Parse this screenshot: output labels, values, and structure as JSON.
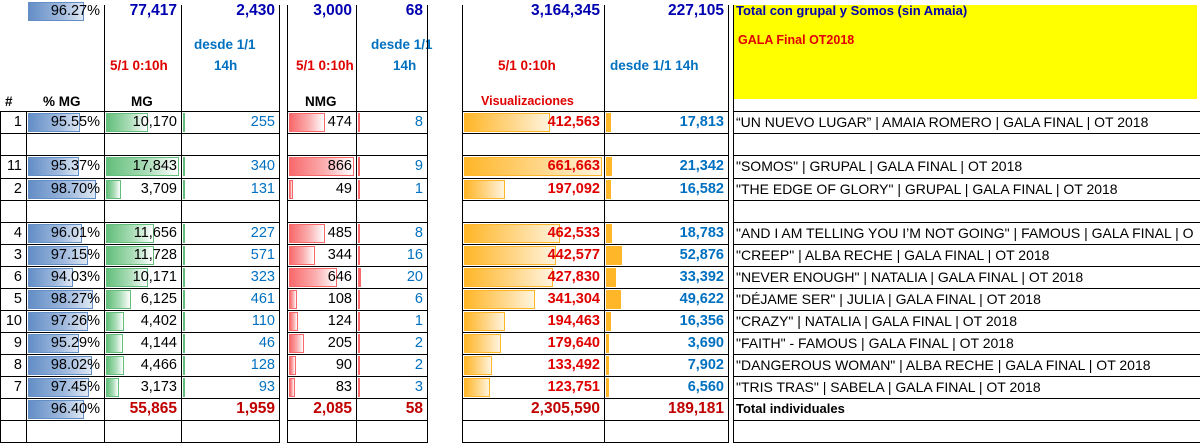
{
  "header": {
    "title": "GALA Final OT2018",
    "h_mg_snap": "5/1 0:10h",
    "h_mg_since": "desde 1/1",
    "h_mg_since2": "14h",
    "h_nmg_snap": "5/1 0:10h",
    "h_nmg_since": "desde 1/1",
    "h_nmg_since2": "14h",
    "h_vis_snap": "5/1 0:10h",
    "h_vis_since": "desde 1/1 14h",
    "col_num": "#",
    "col_pct": "% MG",
    "col_mg": "MG",
    "col_nmg": "NMG",
    "col_vis": "Visualizaciones"
  },
  "rows": [
    {
      "num": "1",
      "pct": "95.55%",
      "pct_v": 95.55,
      "mg": "10,170",
      "mg_v": 10170,
      "mgs": "255",
      "mgs_v": 255,
      "nmg": "474",
      "nmg_v": 474,
      "nmgs": "8",
      "nmgs_v": 8,
      "vis": "412,563",
      "vis_v": 412563,
      "viss": "17,813",
      "viss_v": 17813,
      "title": "“UN NUEVO LUGAR” | AMAIA ROMERO | GALA FINAL | OT 2018"
    },
    {
      "num": "11",
      "pct": "95.37%",
      "pct_v": 95.37,
      "mg": "17,843",
      "mg_v": 17843,
      "mgs": "340",
      "mgs_v": 340,
      "nmg": "866",
      "nmg_v": 866,
      "nmgs": "9",
      "nmgs_v": 9,
      "vis": "661,663",
      "vis_v": 661663,
      "viss": "21,342",
      "viss_v": 21342,
      "title": "\"SOMOS\" | GRUPAL | GALA FINAL | OT 2018"
    },
    {
      "num": "2",
      "pct": "98.70%",
      "pct_v": 98.7,
      "mg": "3,709",
      "mg_v": 3709,
      "mgs": "131",
      "mgs_v": 131,
      "nmg": "49",
      "nmg_v": 49,
      "nmgs": "1",
      "nmgs_v": 1,
      "vis": "197,092",
      "vis_v": 197092,
      "viss": "16,582",
      "viss_v": 16582,
      "title": "\"THE EDGE OF GLORY\" | GRUPAL | GALA FINAL | OT 2018"
    },
    {
      "num": "4",
      "pct": "96.01%",
      "pct_v": 96.01,
      "mg": "11,656",
      "mg_v": 11656,
      "mgs": "227",
      "mgs_v": 227,
      "nmg": "485",
      "nmg_v": 485,
      "nmgs": "8",
      "nmgs_v": 8,
      "vis": "462,533",
      "vis_v": 462533,
      "viss": "18,783",
      "viss_v": 18783,
      "title": "\"AND I AM TELLING YOU I’M NOT GOING\" | FAMOUS | GALA FINAL | O"
    },
    {
      "num": "3",
      "pct": "97.15%",
      "pct_v": 97.15,
      "mg": "11,728",
      "mg_v": 11728,
      "mgs": "571",
      "mgs_v": 571,
      "nmg": "344",
      "nmg_v": 344,
      "nmgs": "16",
      "nmgs_v": 16,
      "vis": "442,577",
      "vis_v": 442577,
      "viss": "52,876",
      "viss_v": 52876,
      "title": "\"CREEP\" | ALBA RECHE | GALA FINAL | OT 2018"
    },
    {
      "num": "6",
      "pct": "94.03%",
      "pct_v": 94.03,
      "mg": "10,171",
      "mg_v": 10171,
      "mgs": "323",
      "mgs_v": 323,
      "nmg": "646",
      "nmg_v": 646,
      "nmgs": "20",
      "nmgs_v": 20,
      "vis": "427,830",
      "vis_v": 427830,
      "viss": "33,392",
      "viss_v": 33392,
      "title": "\"NEVER ENOUGH\" | NATALIA | GALA FINAL | OT 2018"
    },
    {
      "num": "5",
      "pct": "98.27%",
      "pct_v": 98.27,
      "mg": "6,125",
      "mg_v": 6125,
      "mgs": "461",
      "mgs_v": 461,
      "nmg": "108",
      "nmg_v": 108,
      "nmgs": "6",
      "nmgs_v": 6,
      "vis": "341,304",
      "vis_v": 341304,
      "viss": "49,622",
      "viss_v": 49622,
      "title": "\"DÉJAME SER\" | JULIA | GALA FINAL | OT 2018"
    },
    {
      "num": "10",
      "pct": "97.26%",
      "pct_v": 97.26,
      "mg": "4,402",
      "mg_v": 4402,
      "mgs": "110",
      "mgs_v": 110,
      "nmg": "124",
      "nmg_v": 124,
      "nmgs": "1",
      "nmgs_v": 1,
      "vis": "194,463",
      "vis_v": 194463,
      "viss": "16,356",
      "viss_v": 16356,
      "title": "\"CRAZY\" | NATALIA | GALA FINAL | OT 2018"
    },
    {
      "num": "9",
      "pct": "95.29%",
      "pct_v": 95.29,
      "mg": "4,144",
      "mg_v": 4144,
      "mgs": "46",
      "mgs_v": 46,
      "nmg": "205",
      "nmg_v": 205,
      "nmgs": "2",
      "nmgs_v": 2,
      "vis": "179,640",
      "vis_v": 179640,
      "viss": "3,690",
      "viss_v": 3690,
      "title": "\"FAITH\" - FAMOUS | GALA FINAL | OT 2018"
    },
    {
      "num": "8",
      "pct": "98.02%",
      "pct_v": 98.02,
      "mg": "4,466",
      "mg_v": 4466,
      "mgs": "128",
      "mgs_v": 128,
      "nmg": "90",
      "nmg_v": 90,
      "nmgs": "2",
      "nmgs_v": 2,
      "vis": "133,492",
      "vis_v": 133492,
      "viss": "7,902",
      "viss_v": 7902,
      "title": "\"DANGEROUS WOMAN\" | ALBA RECHE | GALA FINAL | OT 2018"
    },
    {
      "num": "7",
      "pct": "97.45%",
      "pct_v": 97.45,
      "mg": "3,173",
      "mg_v": 3173,
      "mgs": "93",
      "mgs_v": 93,
      "nmg": "83",
      "nmg_v": 83,
      "nmgs": "3",
      "nmgs_v": 3,
      "vis": "123,751",
      "vis_v": 123751,
      "viss": "6,560",
      "viss_v": 6560,
      "title": "\"TRIS TRAS\" | SABELA | GALA FINAL | OT 2018"
    }
  ],
  "totals": [
    {
      "pct": "96.40%",
      "pct_v": 96.4,
      "mg": "55,865",
      "mgs": "1,959",
      "nmg": "2,085",
      "nmgs": "58",
      "vis": "2,305,590",
      "viss": "189,181",
      "title": "Total individuales"
    },
    {
      "pct": "96.27%",
      "pct_v": 96.27,
      "mg": "77,417",
      "mgs": "2,430",
      "nmg": "3,000",
      "nmgs": "68",
      "vis": "3,164,345",
      "viss": "227,105",
      "title": "Total  con grupal y Somos  (sin Amaia)"
    }
  ],
  "colors": {
    "title_bg": "#ffff00",
    "mg_bar": "#63be7b",
    "nmg_bar": "#f8696b",
    "vis_bar": "#ffb628",
    "pct_bar": "#638ec6",
    "red_text": "#e00000",
    "blue_text": "#0070c0"
  }
}
